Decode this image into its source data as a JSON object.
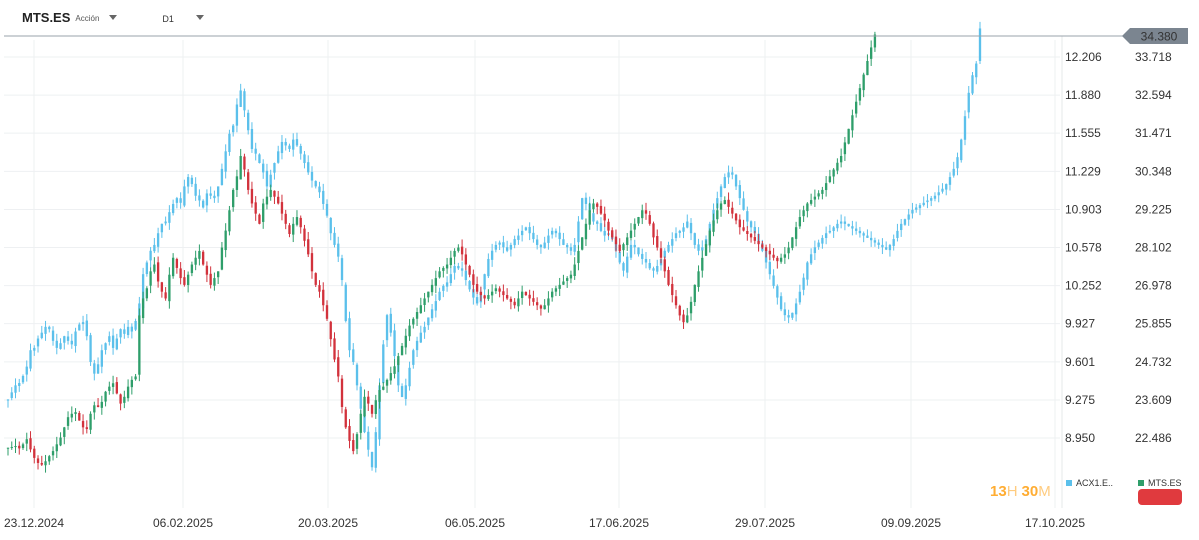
{
  "toolbar": {
    "symbol": "MTS.ES",
    "symbol_type": "Acción",
    "symbol_icon": "chevron-down-icon",
    "timeframe": "D1",
    "timeframe_icon": "chevron-down-icon"
  },
  "countdown": {
    "hours": "13",
    "hours_unit": "H",
    "minutes": "30",
    "minutes_unit": "M"
  },
  "current_price_label": "34.380",
  "colors": {
    "compare_series": "#5bc0eb",
    "up_candle": "#2e9e6a",
    "down_candle": "#d2323c",
    "price_line": "#9aa3ab",
    "price_badge": "#7b8590",
    "countdown": "#ffad33",
    "mts_badge": "#e03a3e"
  },
  "chart_data": {
    "type": "candlestick",
    "x_tick_labels": [
      "23.12.2024",
      "06.02.2025",
      "20.03.2025",
      "06.05.2025",
      "17.06.2025",
      "29.07.2025",
      "09.09.2025",
      "17.10.2025"
    ],
    "y_left_ticks": [
      12.206,
      11.88,
      11.555,
      11.229,
      10.903,
      10.578,
      10.252,
      9.927,
      9.601,
      9.275,
      8.95
    ],
    "y_left_tick_labels": [
      "12.206",
      "11.880",
      "11.555",
      "11.229",
      "10.903",
      "10.578",
      "10.252",
      "9.927",
      "9.601",
      "9.275",
      "8.950"
    ],
    "y_right_ticks": [
      33.718,
      32.594,
      31.471,
      30.348,
      29.225,
      28.102,
      26.978,
      25.855,
      24.732,
      23.609,
      22.486
    ],
    "y_right_tick_labels": [
      "33.718",
      "32.594",
      "31.471",
      "30.348",
      "29.225",
      "28.102",
      "26.978",
      "25.855",
      "24.732",
      "23.609",
      "22.486"
    ],
    "legend": [
      {
        "name": "ACX1.E..",
        "color": "#5bc0eb"
      },
      {
        "name": "MTS.ES",
        "color": "#2e9e6a"
      }
    ],
    "series": [
      {
        "name": "ACX1.E..",
        "axis": "left",
        "style": "candlestick-light",
        "close": [
          9.28,
          9.34,
          9.4,
          9.42,
          9.48,
          9.56,
          9.7,
          9.72,
          9.8,
          9.85,
          9.9,
          9.88,
          9.78,
          9.72,
          9.76,
          9.82,
          9.78,
          9.75,
          9.86,
          9.92,
          9.94,
          9.82,
          9.6,
          9.5,
          9.58,
          9.7,
          9.76,
          9.82,
          9.72,
          9.8,
          9.88,
          9.84,
          9.9,
          9.86,
          9.95,
          10.1,
          10.35,
          10.45,
          10.55,
          10.6,
          10.7,
          10.78,
          10.8,
          10.88,
          10.95,
          11.0,
          10.96,
          11.1,
          11.18,
          11.12,
          11.02,
          10.98,
          10.92,
          11.04,
          11.02,
          11.0,
          11.1,
          11.25,
          11.4,
          11.55,
          11.62,
          11.8,
          11.92,
          11.75,
          11.58,
          11.42,
          11.38,
          11.3,
          11.22,
          11.1,
          11.2,
          11.3,
          11.4,
          11.48,
          11.45,
          11.42,
          11.5,
          11.45,
          11.38,
          11.3,
          11.22,
          11.15,
          11.1,
          11.05,
          10.95,
          10.85,
          10.7,
          10.6,
          10.5,
          10.3,
          9.95,
          9.7,
          9.6,
          9.4,
          9.2,
          9.0,
          8.85,
          8.7,
          9.0,
          9.4,
          9.75,
          10.0,
          9.85,
          9.65,
          9.4,
          9.3,
          9.4,
          9.55,
          9.7,
          9.78,
          9.85,
          9.9,
          9.98,
          10.05,
          10.12,
          10.2,
          10.25,
          10.28,
          10.35,
          10.42,
          10.4,
          10.38,
          10.3,
          10.22,
          10.15,
          10.1,
          10.2,
          10.35,
          10.48,
          10.55,
          10.6,
          10.62,
          10.58,
          10.55,
          10.6,
          10.65,
          10.68,
          10.72,
          10.75,
          10.7,
          10.65,
          10.6,
          10.58,
          10.62,
          10.68,
          10.72,
          10.7,
          10.65,
          10.6,
          10.58,
          10.55,
          10.6,
          10.8,
          11.0,
          10.95,
          10.88,
          10.8,
          10.78,
          10.72,
          10.68,
          10.7,
          10.65,
          10.55,
          10.45,
          10.38,
          10.5,
          10.6,
          10.58,
          10.52,
          10.48,
          10.45,
          10.4,
          10.38,
          10.42,
          10.48,
          10.55,
          10.6,
          10.65,
          10.7,
          10.72,
          10.75,
          10.8,
          10.7,
          10.6,
          10.55,
          10.58,
          10.65,
          10.78,
          10.9,
          11.0,
          11.1,
          11.18,
          11.22,
          11.2,
          11.1,
          11.0,
          10.9,
          10.8,
          10.75,
          10.7,
          10.62,
          10.55,
          10.45,
          10.35,
          10.25,
          10.15,
          10.05,
          10.0,
          9.98,
          10.02,
          10.1,
          10.2,
          10.32,
          10.45,
          10.52,
          10.58,
          10.62,
          10.66,
          10.7,
          10.72,
          10.75,
          10.78,
          10.8,
          10.78,
          10.76,
          10.74,
          10.72,
          10.7,
          10.68,
          10.66,
          10.64,
          10.62,
          10.6,
          10.58,
          10.56,
          10.6,
          10.65,
          10.72,
          10.78,
          10.82,
          10.86,
          10.9,
          10.92,
          10.94,
          10.96,
          10.98,
          11.0,
          11.02,
          11.05,
          11.08,
          11.12,
          11.18,
          11.25,
          11.35,
          11.5,
          11.7,
          11.9,
          12.05,
          12.15,
          12.45
        ]
      },
      {
        "name": "MTS.ES",
        "axis": "right",
        "style": "candlestick",
        "close": [
          22.2,
          22.22,
          22.25,
          22.18,
          22.3,
          22.45,
          22.15,
          21.9,
          21.75,
          21.7,
          21.8,
          21.95,
          22.1,
          22.3,
          22.5,
          22.8,
          23.1,
          23.2,
          23.25,
          23.0,
          22.8,
          22.75,
          23.2,
          23.45,
          23.4,
          23.55,
          23.85,
          24.0,
          24.1,
          23.8,
          23.5,
          23.7,
          24.0,
          24.2,
          24.3,
          26.1,
          26.6,
          26.9,
          27.4,
          27.6,
          27.1,
          26.8,
          26.6,
          27.3,
          27.8,
          27.5,
          27.2,
          27.0,
          27.3,
          27.6,
          27.8,
          28.0,
          27.6,
          27.3,
          27.0,
          27.2,
          27.4,
          28.1,
          28.6,
          29.2,
          29.8,
          30.2,
          30.8,
          30.4,
          29.8,
          29.4,
          29.1,
          28.8,
          29.4,
          29.6,
          29.8,
          29.6,
          29.4,
          29.1,
          28.8,
          28.5,
          28.8,
          29.0,
          28.7,
          28.3,
          27.9,
          27.4,
          27.0,
          26.8,
          26.4,
          26.0,
          25.4,
          24.8,
          24.3,
          23.4,
          22.8,
          22.4,
          22.1,
          22.6,
          23.2,
          23.7,
          23.5,
          23.2,
          23.6,
          23.9,
          24.0,
          24.2,
          24.4,
          24.6,
          24.9,
          25.2,
          25.5,
          25.8,
          26.0,
          26.2,
          26.4,
          26.6,
          26.8,
          27.0,
          27.2,
          27.4,
          27.5,
          27.6,
          27.8,
          28.0,
          28.1,
          27.9,
          27.6,
          27.3,
          27.0,
          26.8,
          26.7,
          26.6,
          26.7,
          26.8,
          26.9,
          26.8,
          26.7,
          26.6,
          26.5,
          26.4,
          26.6,
          26.8,
          26.7,
          26.6,
          26.5,
          26.4,
          26.3,
          26.4,
          26.6,
          26.8,
          26.9,
          27.0,
          27.1,
          27.2,
          27.3,
          27.6,
          28.0,
          28.4,
          28.8,
          29.2,
          29.4,
          29.3,
          29.1,
          28.9,
          28.6,
          28.4,
          28.2,
          28.0,
          28.2,
          28.4,
          28.6,
          28.8,
          29.0,
          29.2,
          29.1,
          28.8,
          28.4,
          28.1,
          27.8,
          27.4,
          27.0,
          26.7,
          26.4,
          26.1,
          25.9,
          26.1,
          26.5,
          27.0,
          27.4,
          27.8,
          28.2,
          28.6,
          28.9,
          29.2,
          29.4,
          29.5,
          29.3,
          29.1,
          28.9,
          28.7,
          28.6,
          28.5,
          28.4,
          28.3,
          28.2,
          28.1,
          28.0,
          27.9,
          27.8,
          27.7,
          27.8,
          27.9,
          28.1,
          28.4,
          28.7,
          29.0,
          29.2,
          29.4,
          29.5,
          29.6,
          29.7,
          29.8,
          30.0,
          30.2,
          30.4,
          30.6,
          30.8,
          31.2,
          31.6,
          32.0,
          32.4,
          32.8,
          33.2,
          33.6,
          34.0,
          34.38
        ]
      }
    ]
  }
}
